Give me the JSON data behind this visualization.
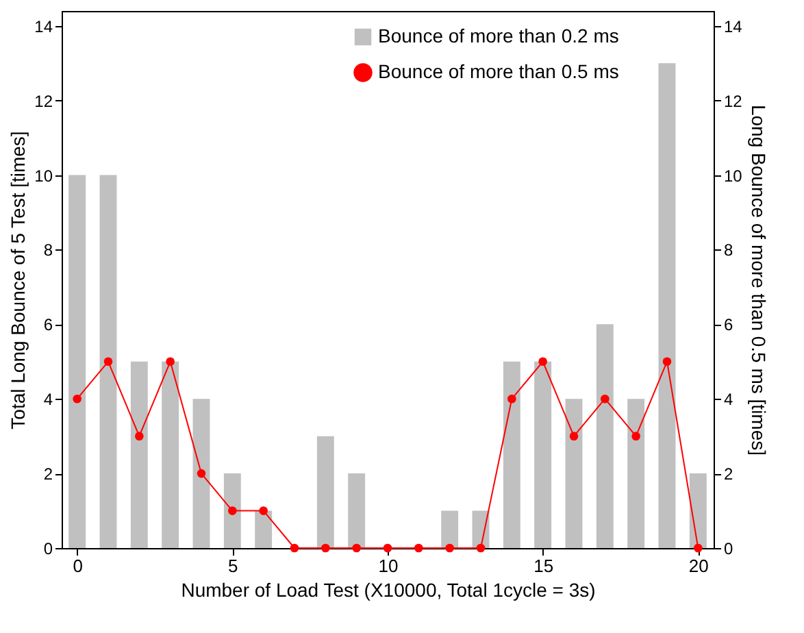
{
  "chart_data": {
    "type": "bar",
    "xlabel": "Number of Load Test (X10000, Total 1cycle = 3s)",
    "ylabel": "Total Long Bounce of 5 Test [times]",
    "y2label": "Long Bounce of more than 0.5 ms [times]",
    "x": [
      0,
      1,
      2,
      3,
      4,
      5,
      6,
      7,
      8,
      9,
      10,
      11,
      12,
      13,
      14,
      15,
      16,
      17,
      18,
      19,
      20
    ],
    "xlim": [
      -0.5,
      20.5
    ],
    "xticks": [
      0,
      5,
      10,
      15,
      20
    ],
    "ylim": [
      0,
      14.4
    ],
    "yticks": [
      0,
      2,
      4,
      6,
      8,
      10,
      12,
      14
    ],
    "y2lim": [
      0,
      14.4
    ],
    "y2ticks": [
      0,
      2,
      4,
      6,
      8,
      10,
      12,
      14
    ],
    "legend": "top right",
    "grid": false,
    "series": [
      {
        "name": "Bounce of more than 0.2 ms",
        "color": "#c0c0c0",
        "values": [
          10,
          10,
          5,
          5,
          4,
          2,
          1,
          0,
          3,
          2,
          0,
          0,
          1,
          1,
          5,
          5,
          4,
          6,
          4,
          13,
          2
        ]
      },
      {
        "name": "Bounce of more than 0.5 ms",
        "type": "line",
        "axis": "y2",
        "color": "#ff0000",
        "marker": "circle",
        "line_style": "solid",
        "values": [
          4,
          5,
          3,
          5,
          2,
          1,
          1,
          0,
          0,
          0,
          0,
          0,
          0,
          0,
          4,
          5,
          3,
          4,
          3,
          5,
          0
        ]
      }
    ]
  }
}
